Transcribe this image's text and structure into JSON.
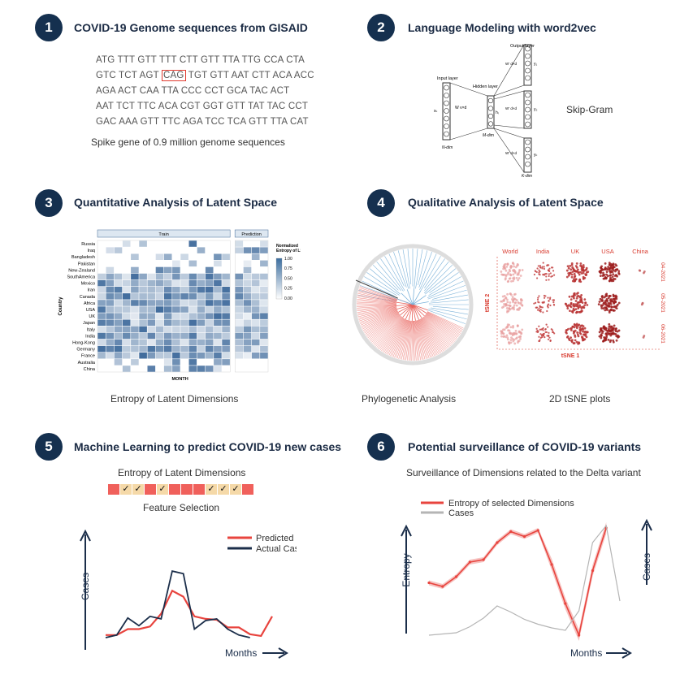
{
  "panels": [
    {
      "number": "1",
      "title": "COVID-19 Genome sequences from GISAID"
    },
    {
      "number": "2",
      "title": "Language Modeling with word2vec"
    },
    {
      "number": "3",
      "title": "Quantitative Analysis of Latent Space"
    },
    {
      "number": "4",
      "title": "Qualitative Analysis of Latent Space"
    },
    {
      "number": "5",
      "title": "Machine Learning to predict COVID-19 new cases"
    },
    {
      "number": "6",
      "title": "Potential surveillance of COVID-19 variants"
    }
  ],
  "p1": {
    "seq_lines": [
      {
        "pre": "ATG TTT GTT TTT CTT GTT TTA TTG CCA CTA",
        "hl": "",
        "post": ""
      },
      {
        "pre": "GTC TCT AGT ",
        "hl": "CAG",
        "post": " TGT GTT AAT CTT ACA ACC"
      },
      {
        "pre": "AGA ACT CAA TTA CCC CCT GCA TAC ACT",
        "hl": "",
        "post": ""
      },
      {
        "pre": "AAT TCT TTC ACA CGT GGT GTT TAT TAC CCT",
        "hl": "",
        "post": ""
      },
      {
        "pre": "GAC AAA GTT TTC AGA TCC TCA GTT TTA CAT",
        "hl": "",
        "post": ""
      }
    ],
    "caption": "Spike gene of  0.9 million genome sequences"
  },
  "p2": {
    "input_layer": "Input layer",
    "hidden_layer": "Hidden layer",
    "output_layer": "Output layer",
    "n_dim": "N-dim",
    "m_dim": "M-dim",
    "k_dim": "K-dim",
    "w_in": "W v×d",
    "w_out": "W' d×d",
    "x_k": "xₖ",
    "h_i": "hᵢ",
    "y_labels": [
      "y₁",
      "y₂",
      "yₖ"
    ],
    "caption": "Skip-Gram"
  },
  "p3": {
    "chart_data": {
      "type": "heatmap",
      "facets": [
        "Train",
        "Prediction"
      ],
      "rows": [
        "Russia",
        "Iraq",
        "Bangladesh",
        "Pakistan",
        "New-Zealand",
        "SouthAmerica",
        "Mexico",
        "Iran",
        "Canada",
        "Africa",
        "USA",
        "UK",
        "Japan",
        "Italy",
        "India",
        "Hong-Kong",
        "Germany",
        "France",
        "Australia",
        "China"
      ],
      "ylabel": "Country",
      "xlabel": "MONTH",
      "legend_title": "Normalized Entropy of LS",
      "legend_ticks": [
        "1.00",
        "0.75",
        "0.50",
        "0.25",
        "0.00"
      ],
      "color_low": "#ffffff",
      "color_high": "#3c6e9f"
    },
    "caption": "Entropy of Latent Dimensions"
  },
  "p4": {
    "phylo_caption": "Phylogenetic Analysis",
    "tsne_caption": "2D tSNE plots",
    "tsne_cols": [
      "World",
      "India",
      "UK",
      "USA",
      "China"
    ],
    "tsne_rows": [
      "04-2021",
      "05-2021",
      "06-2021"
    ],
    "tsne_xlabel": "tSNE 1",
    "tsne_ylabel": "tSNE 2",
    "colors": {
      "tsne_text": "#d83a2e",
      "tree_red": "#e8615a",
      "tree_blue": "#7bb2d9"
    }
  },
  "p5": {
    "fs_title": "Entropy of Latent Dimensions",
    "fs_caption": "Feature Selection",
    "fs_cells": [
      {
        "kind": "red",
        "mark": ""
      },
      {
        "kind": "tan",
        "mark": "✓"
      },
      {
        "kind": "tan",
        "mark": "✓"
      },
      {
        "kind": "red",
        "mark": ""
      },
      {
        "kind": "tan",
        "mark": "✓"
      },
      {
        "kind": "red",
        "mark": ""
      },
      {
        "kind": "red",
        "mark": ""
      },
      {
        "kind": "red",
        "mark": ""
      },
      {
        "kind": "tan",
        "mark": "✓"
      },
      {
        "kind": "tan",
        "mark": "✓"
      },
      {
        "kind": "tan",
        "mark": "✓"
      },
      {
        "kind": "red",
        "mark": ""
      }
    ],
    "colors": {
      "red": "#f0605b",
      "tan": "#f5d9a8",
      "predicted": "#e8443e",
      "actual": "#1b2e4a"
    },
    "chart_data": {
      "type": "line",
      "x": [
        0,
        1,
        2,
        3,
        4,
        5,
        6,
        7,
        8,
        9,
        10,
        11,
        12,
        13,
        14,
        15
      ],
      "series": [
        {
          "name": "Predicted  Cases",
          "values": [
            3,
            3,
            10,
            10,
            13,
            28,
            55,
            48,
            25,
            22,
            21,
            12,
            12,
            4,
            2,
            25
          ]
        },
        {
          "name": "Actual Cases",
          "values": [
            0,
            3,
            23,
            14,
            25,
            22,
            78,
            75,
            10,
            20,
            22,
            10,
            3,
            0,
            null,
            null
          ]
        }
      ],
      "ylim": [
        0,
        100
      ],
      "xlabel": "Months",
      "ylabel": "Cases"
    }
  },
  "p6": {
    "subtitle": "Surveillance of Dimensions related to the Delta variant",
    "colors": {
      "entropy": "#e8443e",
      "band": "#f4b3b0",
      "cases": "#b5b5b5"
    },
    "chart_data": {
      "type": "line",
      "x": [
        0,
        1,
        2,
        3,
        4,
        5,
        6,
        7,
        8,
        9,
        10,
        11,
        12,
        13,
        14
      ],
      "series": [
        {
          "name": "Entropy  of  selected  Dimensions",
          "values": [
            45,
            42,
            50,
            62,
            64,
            78,
            87,
            83,
            88,
            60,
            28,
            2,
            55,
            90,
            null
          ]
        },
        {
          "name": "Cases",
          "values": [
            2,
            3,
            4,
            9,
            16,
            26,
            21,
            15,
            11,
            8,
            6,
            22,
            78,
            92,
            30
          ]
        }
      ],
      "ylim": [
        0,
        100
      ],
      "xlabel": "Months",
      "ylabel": "Entropy",
      "y2label": "Cases"
    }
  }
}
